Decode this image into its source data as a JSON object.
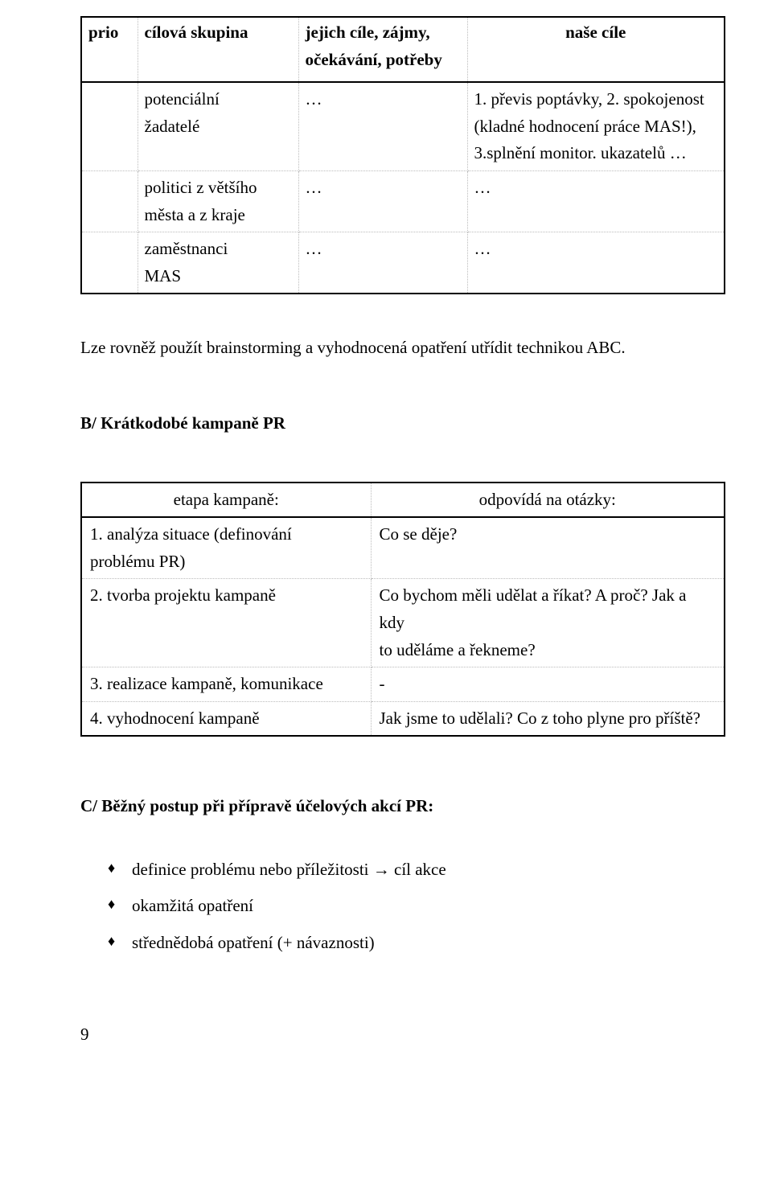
{
  "table1": {
    "headers": {
      "c0": "prio",
      "c1": "cílová skupina",
      "c2_line1": "jejich cíle, zájmy,",
      "c2_line2": "očekávání, potřeby",
      "c3": "naše cíle"
    },
    "rows": [
      {
        "c0": "",
        "c1a": "potenciální",
        "c1b": "žadatelé",
        "c2": "…",
        "c3a": "1. převis poptávky, 2. spokojenost",
        "c3b": "(kladné hodnocení práce MAS!),",
        "c3c": "3.splnění monitor. ukazatelů …"
      },
      {
        "c0": "",
        "c1a": "politici z většího",
        "c1b": "města a z kraje",
        "c2": "…",
        "c3a": "…",
        "c3b": "",
        "c3c": ""
      },
      {
        "c0": "",
        "c1a": "zaměstnanci",
        "c1b": "MAS",
        "c2": "…",
        "c3a": "…",
        "c3b": "",
        "c3c": ""
      }
    ]
  },
  "paragraph1": "Lze rovněž použít brainstorming a vyhodnocená opatření utřídit technikou ABC.",
  "headingB": "B/ Krátkodobé kampaně PR",
  "table2": {
    "headers": {
      "d0": "etapa kampaně:",
      "d1": "odpovídá na otázky:"
    },
    "rows": [
      {
        "d0a": "1. analýza situace (definování",
        "d0b": "problému PR)",
        "d1a": "Co se děje?",
        "d1b": ""
      },
      {
        "d0a": "2. tvorba projektu kampaně",
        "d0b": "",
        "d1a": "Co bychom měli udělat a říkat? A proč? Jak a kdy",
        "d1b": "to uděláme a řekneme?"
      },
      {
        "d0a": "3. realizace kampaně, komunikace",
        "d0b": "",
        "d1a": "-",
        "d1b": ""
      },
      {
        "d0a": "4. vyhodnocení kampaně",
        "d0b": "",
        "d1a": "Jak jsme to udělali? Co z toho plyne pro příště?",
        "d1b": ""
      }
    ]
  },
  "headingC": "C/ Běžný postup při přípravě účelových akcí PR:",
  "bullets": {
    "b0": "definice problému nebo příležitosti → cíl akce",
    "b1": "okamžitá opatření",
    "b2": "střednědobá opatření (+ návaznosti)"
  },
  "pageNumber": "9"
}
